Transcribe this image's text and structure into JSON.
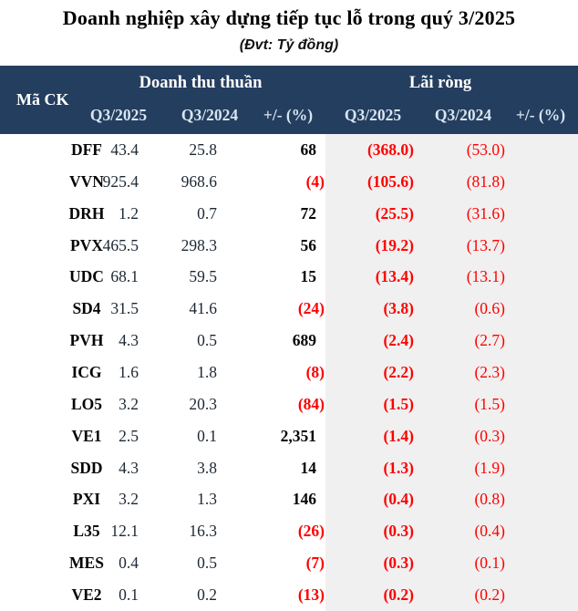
{
  "title": "Doanh nghiệp xây dựng tiếp tục lỗ trong quý 3/2025",
  "subtitle": "(Đvt: Tỷ đồng)",
  "colors": {
    "header_bg": "#243E5F",
    "header_text": "#FFFFFF",
    "subheader_text": "#D9E5F1",
    "negative_red": "#FF0000",
    "shade_bg": "#F0F0F0",
    "number_text": "#1C2733"
  },
  "chart_data": {
    "type": "table",
    "title": "Doanh nghiệp xây dựng tiếp tục lỗ trong quý 3/2025",
    "unit_label": "(Đvt: Tỷ đồng)",
    "corner_header": "Mã CK",
    "groups": [
      {
        "label": "Doanh thu thuần",
        "columns": [
          "Q3/2025",
          "Q3/2024",
          "+/- (%)"
        ]
      },
      {
        "label": "Lãi ròng",
        "columns": [
          "Q3/2025",
          "Q3/2024",
          "+/- (%)"
        ]
      }
    ],
    "negative_convention": "parentheses",
    "rows": [
      {
        "ticker": "DFF",
        "revenue_q3_2025": "43.4",
        "revenue_q3_2024": "25.8",
        "revenue_change_pct": "68",
        "profit_q3_2025": "(368.0)",
        "profit_q3_2024": "(53.0)",
        "profit_change_pct": ""
      },
      {
        "ticker": "VVN",
        "revenue_q3_2025": "925.4",
        "revenue_q3_2024": "968.6",
        "revenue_change_pct": "(4)",
        "profit_q3_2025": "(105.6)",
        "profit_q3_2024": "(81.8)",
        "profit_change_pct": ""
      },
      {
        "ticker": "DRH",
        "revenue_q3_2025": "1.2",
        "revenue_q3_2024": "0.7",
        "revenue_change_pct": "72",
        "profit_q3_2025": "(25.5)",
        "profit_q3_2024": "(31.6)",
        "profit_change_pct": ""
      },
      {
        "ticker": "PVX",
        "revenue_q3_2025": "465.5",
        "revenue_q3_2024": "298.3",
        "revenue_change_pct": "56",
        "profit_q3_2025": "(19.2)",
        "profit_q3_2024": "(13.7)",
        "profit_change_pct": ""
      },
      {
        "ticker": "UDC",
        "revenue_q3_2025": "68.1",
        "revenue_q3_2024": "59.5",
        "revenue_change_pct": "15",
        "profit_q3_2025": "(13.4)",
        "profit_q3_2024": "(13.1)",
        "profit_change_pct": ""
      },
      {
        "ticker": "SD4",
        "revenue_q3_2025": "31.5",
        "revenue_q3_2024": "41.6",
        "revenue_change_pct": "(24)",
        "profit_q3_2025": "(3.8)",
        "profit_q3_2024": "(0.6)",
        "profit_change_pct": ""
      },
      {
        "ticker": "PVH",
        "revenue_q3_2025": "4.3",
        "revenue_q3_2024": "0.5",
        "revenue_change_pct": "689",
        "profit_q3_2025": "(2.4)",
        "profit_q3_2024": "(2.7)",
        "profit_change_pct": ""
      },
      {
        "ticker": "ICG",
        "revenue_q3_2025": "1.6",
        "revenue_q3_2024": "1.8",
        "revenue_change_pct": "(8)",
        "profit_q3_2025": "(2.2)",
        "profit_q3_2024": "(2.3)",
        "profit_change_pct": ""
      },
      {
        "ticker": "LO5",
        "revenue_q3_2025": "3.2",
        "revenue_q3_2024": "20.3",
        "revenue_change_pct": "(84)",
        "profit_q3_2025": "(1.5)",
        "profit_q3_2024": "(1.5)",
        "profit_change_pct": ""
      },
      {
        "ticker": "VE1",
        "revenue_q3_2025": "2.5",
        "revenue_q3_2024": "0.1",
        "revenue_change_pct": "2,351",
        "profit_q3_2025": "(1.4)",
        "profit_q3_2024": "(0.3)",
        "profit_change_pct": ""
      },
      {
        "ticker": "SDD",
        "revenue_q3_2025": "4.3",
        "revenue_q3_2024": "3.8",
        "revenue_change_pct": "14",
        "profit_q3_2025": "(1.3)",
        "profit_q3_2024": "(1.9)",
        "profit_change_pct": ""
      },
      {
        "ticker": "PXI",
        "revenue_q3_2025": "3.2",
        "revenue_q3_2024": "1.3",
        "revenue_change_pct": "146",
        "profit_q3_2025": "(0.4)",
        "profit_q3_2024": "(0.8)",
        "profit_change_pct": ""
      },
      {
        "ticker": "L35",
        "revenue_q3_2025": "12.1",
        "revenue_q3_2024": "16.3",
        "revenue_change_pct": "(26)",
        "profit_q3_2025": "(0.3)",
        "profit_q3_2024": "(0.4)",
        "profit_change_pct": ""
      },
      {
        "ticker": "MES",
        "revenue_q3_2025": "0.4",
        "revenue_q3_2024": "0.5",
        "revenue_change_pct": "(7)",
        "profit_q3_2025": "(0.3)",
        "profit_q3_2024": "(0.1)",
        "profit_change_pct": ""
      },
      {
        "ticker": "VE2",
        "revenue_q3_2025": "0.1",
        "revenue_q3_2024": "0.2",
        "revenue_change_pct": "(13)",
        "profit_q3_2025": "(0.2)",
        "profit_q3_2024": "(0.2)",
        "profit_change_pct": ""
      }
    ]
  }
}
